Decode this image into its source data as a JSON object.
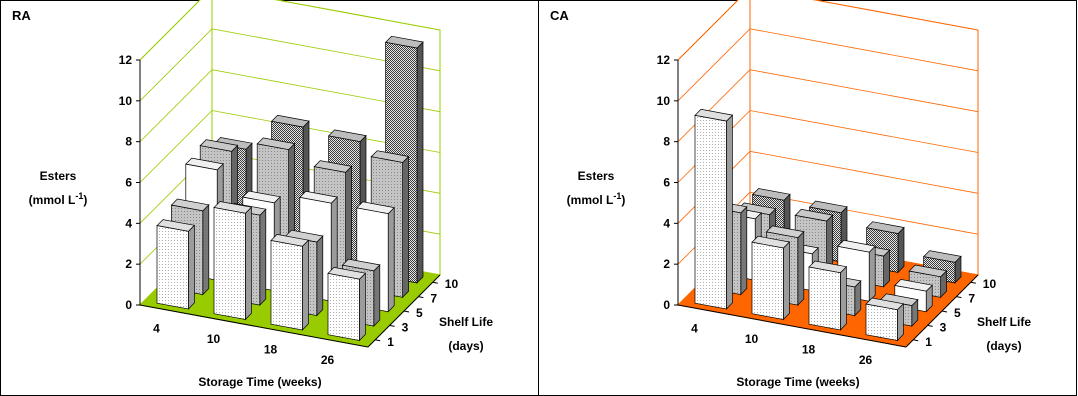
{
  "chart_data": [
    {
      "type": "bar",
      "title": "RA",
      "ylabel_line1": "Esters",
      "ylabel_line2": "(mmol L",
      "ylabel_sup": "-1",
      "ylabel_close": ")",
      "xlabel": "Storage Time (weeks)",
      "zlabel_line1": "Shelf Life",
      "zlabel_line2": "(days)",
      "yticks": [
        0,
        2,
        4,
        6,
        8,
        10,
        12
      ],
      "ylim": [
        0,
        12
      ],
      "categories": [
        "4",
        "10",
        "18",
        "26"
      ],
      "depth_categories": [
        "1",
        "3",
        "5",
        "7",
        "10"
      ],
      "accent": "#99cc00",
      "series": [
        {
          "name": "1",
          "values": [
            3.8,
            5.2,
            4.1,
            3.0
          ]
        },
        {
          "name": "3",
          "values": [
            4.1,
            4.4,
            3.6,
            2.7
          ]
        },
        {
          "name": "5",
          "values": [
            5.4,
            4.3,
            4.8,
            4.8
          ]
        },
        {
          "name": "7",
          "values": [
            5.6,
            6.2,
            5.6,
            6.6
          ]
        },
        {
          "name": "10",
          "values": [
            5.0,
            6.6,
            6.4,
            11.5
          ]
        }
      ]
    },
    {
      "type": "bar",
      "title": "CA",
      "ylabel_line1": "Esters",
      "ylabel_line2": "(mmol L",
      "ylabel_sup": "-1",
      "ylabel_close": ")",
      "xlabel": "Storage Time (weeks)",
      "zlabel_line1": "Shelf Life",
      "zlabel_line2": "(days)",
      "yticks": [
        0,
        2,
        4,
        6,
        8,
        10,
        12
      ],
      "ylim": [
        0,
        12
      ],
      "categories": [
        "4",
        "10",
        "18",
        "26"
      ],
      "depth_categories": [
        "1",
        "3",
        "5",
        "7",
        "10"
      ],
      "accent": "#ff6600",
      "series": [
        {
          "name": "1",
          "values": [
            9.2,
            3.5,
            2.8,
            1.5
          ]
        },
        {
          "name": "3",
          "values": [
            4.0,
            3.3,
            1.4,
            1.0
          ]
        },
        {
          "name": "5",
          "values": [
            3.0,
            1.8,
            2.4,
            1.0
          ]
        },
        {
          "name": "7",
          "values": [
            2.5,
            2.7,
            1.5,
            1.0
          ]
        },
        {
          "name": "10",
          "values": [
            2.5,
            2.4,
            1.9,
            1.0
          ]
        }
      ]
    }
  ]
}
